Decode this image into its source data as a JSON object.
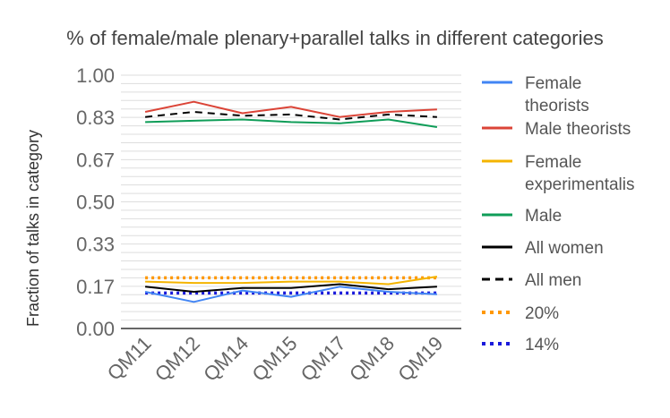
{
  "chart_data": {
    "type": "line",
    "title": "% of female/male plenary+parallel talks in different categories",
    "ylabel": "Fraction of talks in category",
    "xlabel": "",
    "categories": [
      "QM11",
      "QM12",
      "QM14",
      "QM15",
      "QM17",
      "QM18",
      "QM19"
    ],
    "yticks": [
      "1.00",
      "0.83",
      "0.67",
      "0.50",
      "0.33",
      "0.17",
      "0.00"
    ],
    "ylim": [
      0,
      1
    ],
    "grid": true,
    "legend_position": "right",
    "series": [
      {
        "name": "Female theorists",
        "color": "#4285f4",
        "dash": "solid",
        "values": [
          0.145,
          0.105,
          0.15,
          0.125,
          0.165,
          0.145,
          0.135
        ]
      },
      {
        "name": "Male theorists",
        "color": "#db4437",
        "dash": "solid",
        "values": [
          0.855,
          0.895,
          0.85,
          0.875,
          0.835,
          0.855,
          0.865
        ]
      },
      {
        "name": "Female experimentalis",
        "color": "#f4b400",
        "dash": "solid",
        "values": [
          0.185,
          0.18,
          0.18,
          0.185,
          0.185,
          0.175,
          0.205
        ]
      },
      {
        "name": "Male",
        "color": "#0f9d58",
        "dash": "solid",
        "values": [
          0.815,
          0.82,
          0.825,
          0.815,
          0.81,
          0.825,
          0.795
        ]
      },
      {
        "name": "All women",
        "color": "#000000",
        "dash": "solid",
        "values": [
          0.165,
          0.145,
          0.16,
          0.16,
          0.175,
          0.155,
          0.165
        ]
      },
      {
        "name": "All men",
        "color": "#000000",
        "dash": "dashed",
        "values": [
          0.835,
          0.855,
          0.84,
          0.845,
          0.825,
          0.845,
          0.835
        ]
      },
      {
        "name": "20%",
        "color": "#ff9800",
        "dash": "dotted",
        "values": [
          0.2,
          0.2,
          0.2,
          0.2,
          0.2,
          0.2,
          0.2
        ]
      },
      {
        "name": "14%",
        "color": "#1a1adb",
        "dash": "dotted",
        "values": [
          0.14,
          0.14,
          0.14,
          0.14,
          0.14,
          0.14,
          0.14
        ]
      }
    ]
  }
}
